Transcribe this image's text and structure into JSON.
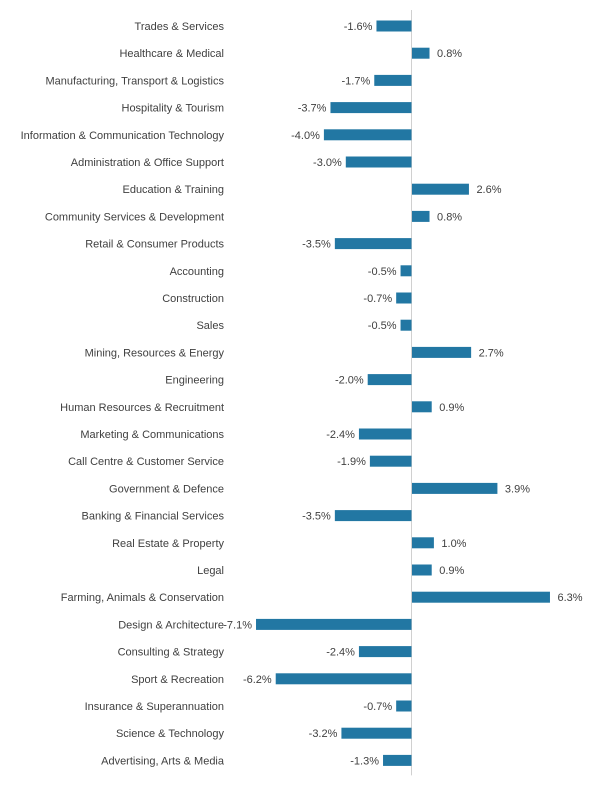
{
  "chart_data": {
    "type": "bar",
    "orientation": "horizontal",
    "bar_color": "#2277a3",
    "axis_color": "#d0d0d0",
    "value_suffix": "%",
    "grid": false,
    "legend": "none",
    "xlim": [
      -7.5,
      6.6
    ],
    "categories": [
      "Trades & Services",
      "Healthcare & Medical",
      "Manufacturing, Transport & Logistics",
      "Hospitality & Tourism",
      "Information & Communication Technology",
      "Administration & Office Support",
      "Education & Training",
      "Community Services & Development",
      "Retail & Consumer Products",
      "Accounting",
      "Construction",
      "Sales",
      "Mining, Resources & Energy",
      "Engineering",
      "Human Resources & Recruitment",
      "Marketing & Communications",
      "Call Centre & Customer Service",
      "Government & Defence",
      "Banking & Financial Services",
      "Real Estate & Property",
      "Legal",
      "Farming, Animals & Conservation",
      "Design & Architecture",
      "Consulting & Strategy",
      "Sport & Recreation",
      "Insurance & Superannuation",
      "Science & Technology",
      "Advertising, Arts & Media"
    ],
    "values": [
      -1.6,
      0.8,
      -1.7,
      -3.7,
      -4.0,
      -3.0,
      2.6,
      0.8,
      -3.5,
      -0.5,
      -0.7,
      -0.5,
      2.7,
      -2.0,
      0.9,
      -2.4,
      -1.9,
      3.9,
      -3.5,
      1.0,
      0.9,
      6.3,
      -7.1,
      -2.4,
      -6.2,
      -0.7,
      -3.2,
      -1.3
    ]
  }
}
